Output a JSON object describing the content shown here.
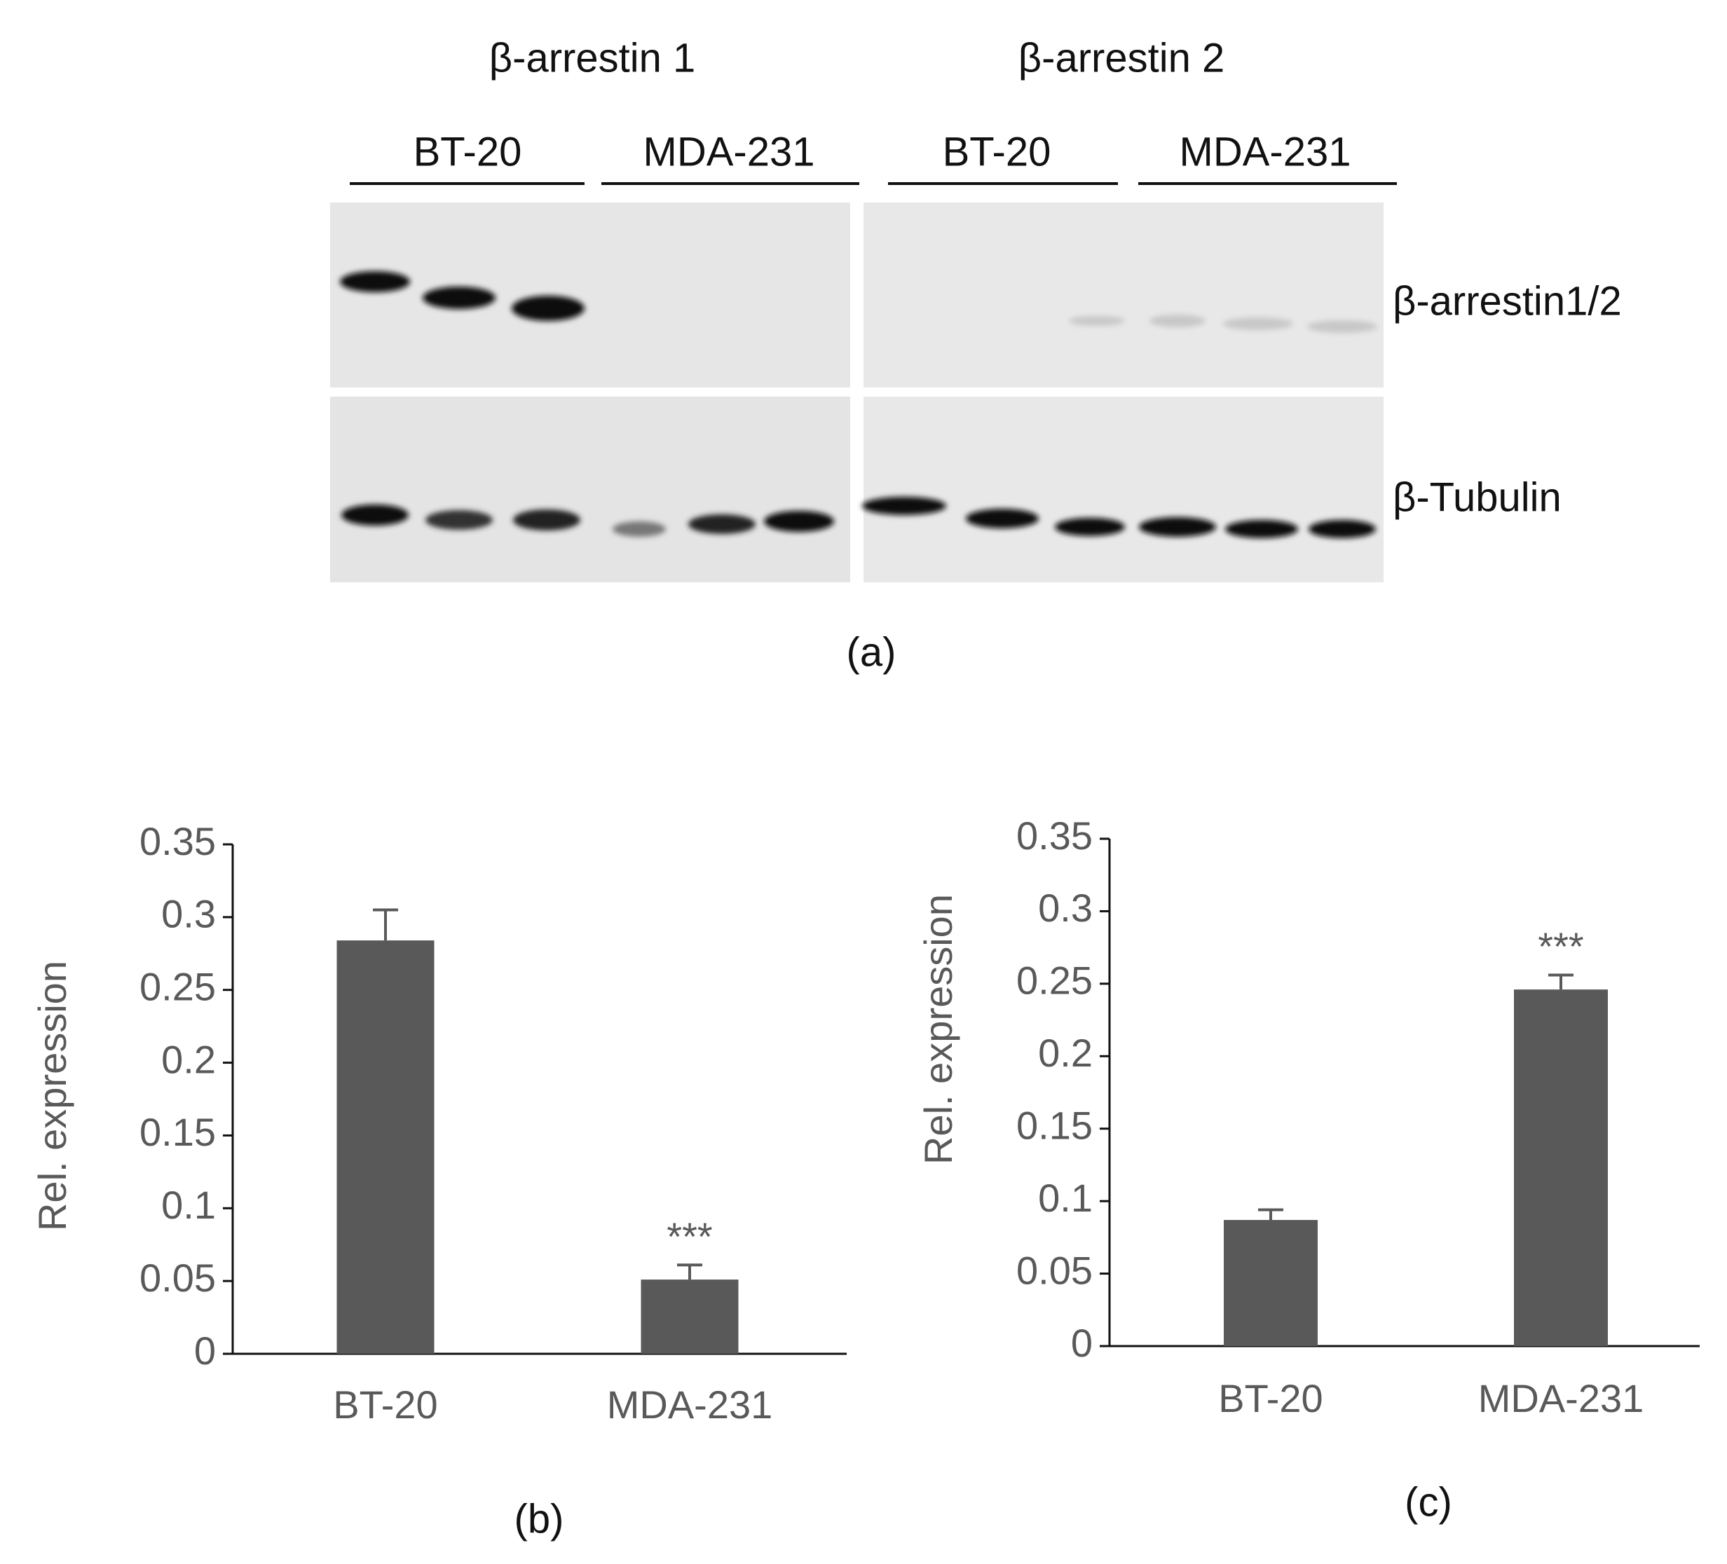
{
  "blot": {
    "groups": [
      "β-arrestin 1",
      "β-arrestin 2"
    ],
    "cell_lines": [
      "BT-20",
      "MDA-231",
      "BT-20",
      "MDA-231"
    ],
    "rows": [
      "β-arrestin1/2",
      "β-Tubulin"
    ],
    "caption": "(a)"
  },
  "chart_data": [
    {
      "type": "bar",
      "caption": "(b)",
      "ylabel": "Rel. expression",
      "categories": [
        "BT-20",
        "MDA-231"
      ],
      "values": [
        0.284,
        0.051
      ],
      "errors": [
        0.021,
        0.01
      ],
      "significance": [
        null,
        "***"
      ],
      "color": "#595959",
      "ylim": [
        0,
        0.35
      ],
      "yticks": [
        0,
        0.05,
        0.1,
        0.15,
        0.2,
        0.25,
        0.3,
        0.35
      ]
    },
    {
      "type": "bar",
      "caption": "(c)",
      "ylabel": "Rel. expression",
      "categories": [
        "BT-20",
        "MDA-231"
      ],
      "values": [
        0.087,
        0.246
      ],
      "errors": [
        0.007,
        0.01
      ],
      "significance": [
        null,
        "***"
      ],
      "color": "#595959",
      "ylim": [
        0,
        0.35
      ],
      "yticks": [
        0,
        0.05,
        0.1,
        0.15,
        0.2,
        0.25,
        0.3,
        0.35
      ]
    }
  ]
}
